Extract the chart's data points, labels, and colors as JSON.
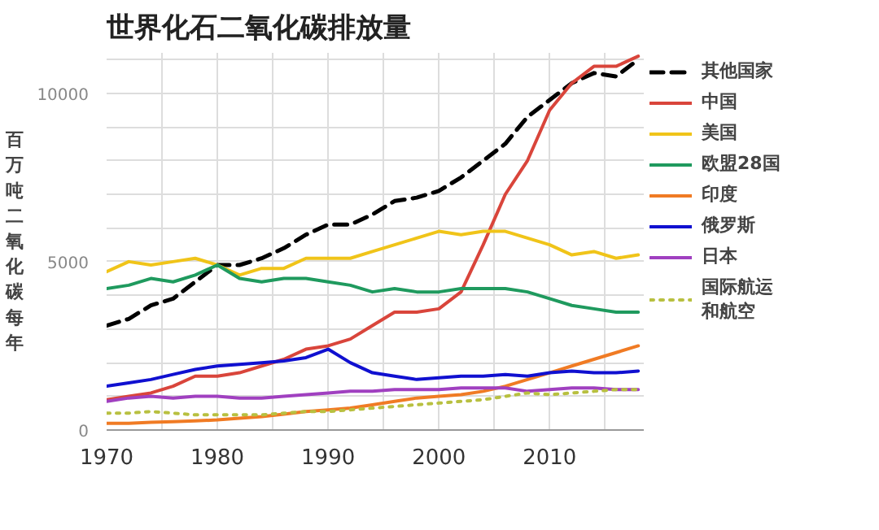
{
  "chart_data": {
    "type": "line",
    "title": "世界化石二氧化碳排放量",
    "ylabel": "百万吨二氧化碳每年",
    "x": [
      1970,
      1972,
      1974,
      1976,
      1978,
      1980,
      1982,
      1984,
      1986,
      1988,
      1990,
      1992,
      1994,
      1996,
      1998,
      2000,
      2002,
      2004,
      2006,
      2008,
      2010,
      2012,
      2014,
      2016,
      2018
    ],
    "xlim": [
      1970,
      2018.5
    ],
    "ylim": [
      0,
      11200
    ],
    "xticks": [
      1970,
      {
        "value": 1975,
        "label": null
      },
      1980,
      {
        "value": 1985,
        "label": null
      },
      1990,
      {
        "value": 1995,
        "label": null
      },
      2000,
      {
        "value": 2005,
        "label": null
      },
      2010,
      {
        "value": 2015,
        "label": null
      }
    ],
    "yticks": [
      0,
      {
        "value": 1000,
        "label": null
      },
      {
        "value": 2000,
        "label": null
      },
      {
        "value": 3000,
        "label": null
      },
      {
        "value": 4000,
        "label": null
      },
      5000,
      {
        "value": 6000,
        "label": null
      },
      {
        "value": 7000,
        "label": null
      },
      {
        "value": 8000,
        "label": null
      },
      {
        "value": 9000,
        "label": null
      },
      10000,
      {
        "value": 11000,
        "label": null
      }
    ],
    "grid": true,
    "legend": "right",
    "series": [
      {
        "name": "其他国家",
        "color": "#000000",
        "line_style": "dashed",
        "values": [
          3100,
          3300,
          3700,
          3900,
          4400,
          4900,
          4900,
          5100,
          5400,
          5800,
          6100,
          6100,
          6400,
          6800,
          6900,
          7100,
          7500,
          8000,
          8500,
          9300,
          9800,
          10300,
          10600,
          10500,
          11000
        ]
      },
      {
        "name": "中国",
        "color": "#d9453b",
        "line_style": "solid",
        "values": [
          900,
          1000,
          1100,
          1300,
          1600,
          1600,
          1700,
          1900,
          2100,
          2400,
          2500,
          2700,
          3100,
          3500,
          3500,
          3600,
          4100,
          5500,
          7000,
          8000,
          9500,
          10300,
          10800,
          10800,
          11100
        ]
      },
      {
        "name": "美国",
        "color": "#f0c419",
        "line_style": "solid",
        "values": [
          4700,
          5000,
          4900,
          5000,
          5100,
          4900,
          4600,
          4800,
          4800,
          5100,
          5100,
          5100,
          5300,
          5500,
          5700,
          5900,
          5800,
          5900,
          5900,
          5700,
          5500,
          5200,
          5300,
          5100,
          5200
        ]
      },
      {
        "name": "欧盟28国",
        "color": "#1f9a5e",
        "line_style": "solid",
        "values": [
          4200,
          4300,
          4500,
          4400,
          4600,
          4900,
          4500,
          4400,
          4500,
          4500,
          4400,
          4300,
          4100,
          4200,
          4100,
          4100,
          4200,
          4200,
          4200,
          4100,
          3900,
          3700,
          3600,
          3500,
          3500
        ]
      },
      {
        "name": "印度",
        "color": "#f07b24",
        "line_style": "solid",
        "values": [
          200,
          200,
          230,
          250,
          270,
          300,
          350,
          400,
          470,
          550,
          600,
          650,
          750,
          850,
          950,
          1000,
          1050,
          1150,
          1300,
          1500,
          1700,
          1900,
          2100,
          2300,
          2500
        ]
      },
      {
        "name": "俄罗斯",
        "color": "#1010d0",
        "line_style": "solid",
        "values": [
          1300,
          1400,
          1500,
          1650,
          1800,
          1900,
          1950,
          2000,
          2050,
          2150,
          2400,
          2000,
          1700,
          1600,
          1500,
          1550,
          1600,
          1600,
          1650,
          1600,
          1700,
          1750,
          1700,
          1700,
          1750
        ]
      },
      {
        "name": "日本",
        "color": "#a040c0",
        "line_style": "solid",
        "values": [
          850,
          950,
          1000,
          950,
          1000,
          1000,
          950,
          950,
          1000,
          1050,
          1100,
          1150,
          1150,
          1200,
          1200,
          1200,
          1250,
          1250,
          1250,
          1150,
          1200,
          1250,
          1250,
          1200,
          1200
        ]
      },
      {
        "name": "国际航运和航空",
        "color": "#b8c040",
        "line_style": "dotted",
        "values": [
          500,
          500,
          550,
          500,
          450,
          450,
          450,
          450,
          500,
          550,
          550,
          600,
          650,
          700,
          750,
          800,
          850,
          900,
          1000,
          1100,
          1050,
          1100,
          1150,
          1200,
          1200
        ]
      }
    ]
  }
}
